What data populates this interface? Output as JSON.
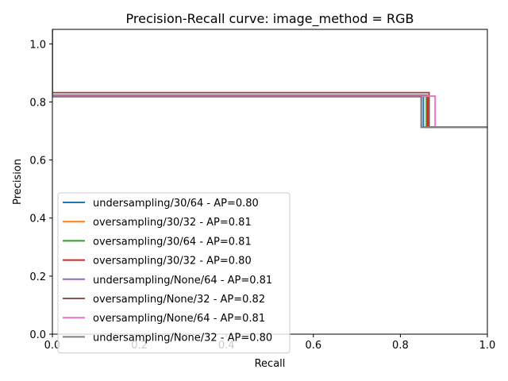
{
  "chart_data": {
    "type": "line",
    "title": "Precision-Recall curve: image_method = RGB",
    "xlabel": "Recall",
    "ylabel": "Precision",
    "xlim": [
      0,
      1
    ],
    "ylim": [
      0,
      1.05
    ],
    "xticks": [
      0,
      0.2,
      0.4,
      0.6,
      0.8,
      1
    ],
    "yticks": [
      0,
      0.2,
      0.4,
      0.6,
      0.8,
      1
    ],
    "xtick_labels": [
      "0.0",
      "0.2",
      "0.4",
      "0.6",
      "0.8",
      "1.0"
    ],
    "ytick_labels": [
      "0.0",
      "0.2",
      "0.4",
      "0.6",
      "0.8",
      "1.0"
    ],
    "grid": false,
    "legend_position": "lower-left",
    "series": [
      {
        "name": "undersampling/30/64 - AP=0.80",
        "color": "#1f77b4",
        "x": [
          0,
          0,
          0.853,
          0.853,
          1
        ],
        "y": [
          1.05,
          0.82,
          0.82,
          0.713,
          0.713
        ]
      },
      {
        "name": "oversampling/30/32 - AP=0.81",
        "color": "#ff7f0e",
        "x": [
          0,
          0,
          0.866,
          0.866,
          1
        ],
        "y": [
          1.05,
          0.823,
          0.823,
          0.713,
          0.713
        ]
      },
      {
        "name": "oversampling/30/64 - AP=0.81",
        "color": "#2ca02c",
        "x": [
          0,
          0,
          0.86,
          0.86,
          1
        ],
        "y": [
          1.05,
          0.823,
          0.823,
          0.713,
          0.713
        ]
      },
      {
        "name": "oversampling/30/32 - AP=0.80",
        "color": "#d62728",
        "x": [
          0,
          0,
          0.863,
          0.863,
          1
        ],
        "y": [
          1.05,
          0.82,
          0.82,
          0.713,
          0.713
        ]
      },
      {
        "name": "undersampling/None/64 - AP=0.81",
        "color": "#9467bd",
        "x": [
          0,
          0,
          0.848,
          0.848,
          1
        ],
        "y": [
          1.05,
          0.82,
          0.82,
          0.713,
          0.713
        ]
      },
      {
        "name": "oversampling/None/32 - AP=0.82",
        "color": "#8c564b",
        "x": [
          0,
          0,
          0.866,
          0.866,
          1
        ],
        "y": [
          1.05,
          0.832,
          0.832,
          0.713,
          0.713
        ]
      },
      {
        "name": "oversampling/None/64 - AP=0.81",
        "color": "#e377c2",
        "x": [
          0,
          0,
          0.88,
          0.88,
          1
        ],
        "y": [
          1.05,
          0.82,
          0.82,
          0.713,
          0.713
        ]
      },
      {
        "name": "undersampling/None/32 - AP=0.80",
        "color": "#7f7f7f",
        "x": [
          0,
          0,
          0.848,
          0.848,
          1
        ],
        "y": [
          1.05,
          0.818,
          0.818,
          0.713,
          0.713
        ]
      }
    ]
  }
}
